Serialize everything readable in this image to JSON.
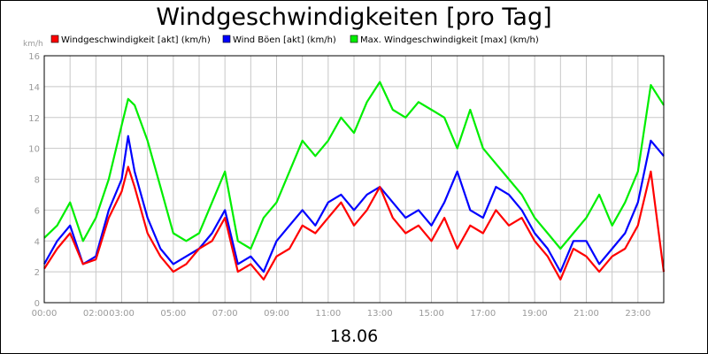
{
  "chart_data": {
    "type": "line",
    "title": "Windgeschwindigkeiten [pro Tag]",
    "xlabel": "18.06",
    "ylabel": "km/h",
    "ylim": [
      0,
      16
    ],
    "yticks": [
      0,
      2,
      4,
      6,
      8,
      10,
      12,
      14,
      16
    ],
    "xlim": [
      0,
      24
    ],
    "xticks": [
      {
        "h": 0,
        "label": "00:00"
      },
      {
        "h": 2,
        "label": "02:00"
      },
      {
        "h": 3,
        "label": "03:00"
      },
      {
        "h": 5,
        "label": "05:00"
      },
      {
        "h": 7,
        "label": "07:00"
      },
      {
        "h": 9,
        "label": "09:00"
      },
      {
        "h": 11,
        "label": "11:00"
      },
      {
        "h": 13,
        "label": "13:00"
      },
      {
        "h": 15,
        "label": "15:00"
      },
      {
        "h": 17,
        "label": "17:00"
      },
      {
        "h": 19,
        "label": "19:00"
      },
      {
        "h": 21,
        "label": "21:00"
      },
      {
        "h": 23,
        "label": "23:00"
      }
    ],
    "grid": true,
    "legend_position": "top",
    "series": [
      {
        "name": "Windgeschwindigkeit [akt] (km/h)",
        "color": "#ff0000",
        "x": [
          0,
          0.5,
          1,
          1.5,
          2,
          2.5,
          3,
          3.25,
          3.5,
          4,
          4.5,
          5,
          5.5,
          6,
          6.5,
          7,
          7.5,
          8,
          8.5,
          9,
          9.5,
          10,
          10.5,
          11,
          11.5,
          12,
          12.5,
          13,
          13.5,
          14,
          14.5,
          15,
          15.5,
          16,
          16.5,
          17,
          17.5,
          18,
          18.5,
          19,
          19.5,
          20,
          20.5,
          21,
          21.5,
          22,
          22.5,
          23,
          23.5,
          24
        ],
        "y": [
          2.2,
          3.5,
          4.5,
          2.5,
          2.8,
          5.5,
          7.2,
          8.8,
          7.5,
          4.5,
          3.0,
          2.0,
          2.5,
          3.5,
          4.0,
          5.5,
          2.0,
          2.5,
          1.5,
          3.0,
          3.5,
          5.0,
          4.5,
          5.5,
          6.5,
          5.0,
          6.0,
          7.5,
          5.5,
          4.5,
          5.0,
          4.0,
          5.5,
          3.5,
          5.0,
          4.5,
          6.0,
          5.0,
          5.5,
          4.0,
          3.0,
          1.5,
          3.5,
          3.0,
          2.0,
          3.0,
          3.5,
          5.0,
          8.5,
          2.0
        ]
      },
      {
        "name": "Wind Böen [akt] (km/h)",
        "color": "#0000ff",
        "x": [
          0,
          0.5,
          1,
          1.5,
          2,
          2.5,
          3,
          3.25,
          3.5,
          4,
          4.5,
          5,
          5.5,
          6,
          6.5,
          7,
          7.5,
          8,
          8.5,
          9,
          9.5,
          10,
          10.5,
          11,
          11.5,
          12,
          12.5,
          13,
          13.5,
          14,
          14.5,
          15,
          15.5,
          16,
          16.5,
          17,
          17.5,
          18,
          18.5,
          19,
          19.5,
          20,
          20.5,
          21,
          21.5,
          22,
          22.5,
          23,
          23.5,
          24
        ],
        "y": [
          2.5,
          4.0,
          5.0,
          2.5,
          3.0,
          6.0,
          8.0,
          10.8,
          8.5,
          5.5,
          3.5,
          2.5,
          3.0,
          3.5,
          4.5,
          6.0,
          2.5,
          3.0,
          2.0,
          4.0,
          5.0,
          6.0,
          5.0,
          6.5,
          7.0,
          6.0,
          7.0,
          7.5,
          6.5,
          5.5,
          6.0,
          5.0,
          6.5,
          8.5,
          6.0,
          5.5,
          7.5,
          7.0,
          6.0,
          4.5,
          3.5,
          2.0,
          4.0,
          4.0,
          2.5,
          3.5,
          4.5,
          6.5,
          10.5,
          9.5
        ]
      },
      {
        "name": "Max. Windgeschwindigkeit [max] (km/h)",
        "color": "#00ee00",
        "x": [
          0,
          0.5,
          1,
          1.5,
          2,
          2.5,
          3,
          3.25,
          3.5,
          4,
          4.5,
          5,
          5.5,
          6,
          6.5,
          7,
          7.5,
          8,
          8.5,
          9,
          9.5,
          10,
          10.5,
          11,
          11.5,
          12,
          12.5,
          13,
          13.5,
          14,
          14.5,
          15,
          15.5,
          16,
          16.5,
          17,
          17.5,
          18,
          18.5,
          19,
          19.5,
          20,
          20.5,
          21,
          21.5,
          22,
          22.5,
          23,
          23.5,
          24
        ],
        "y": [
          4.2,
          5.0,
          6.5,
          4.0,
          5.5,
          8.0,
          11.5,
          13.2,
          12.8,
          10.5,
          7.5,
          4.5,
          4.0,
          4.5,
          6.5,
          8.5,
          4.0,
          3.5,
          5.5,
          6.5,
          8.5,
          10.5,
          9.5,
          10.5,
          12.0,
          11.0,
          13.0,
          14.3,
          12.5,
          12.0,
          13.0,
          12.5,
          12.0,
          10.0,
          12.5,
          10.0,
          9.0,
          8.0,
          7.0,
          5.5,
          4.5,
          3.5,
          4.5,
          5.5,
          7.0,
          5.0,
          6.5,
          8.5,
          14.1,
          12.8
        ]
      }
    ]
  }
}
